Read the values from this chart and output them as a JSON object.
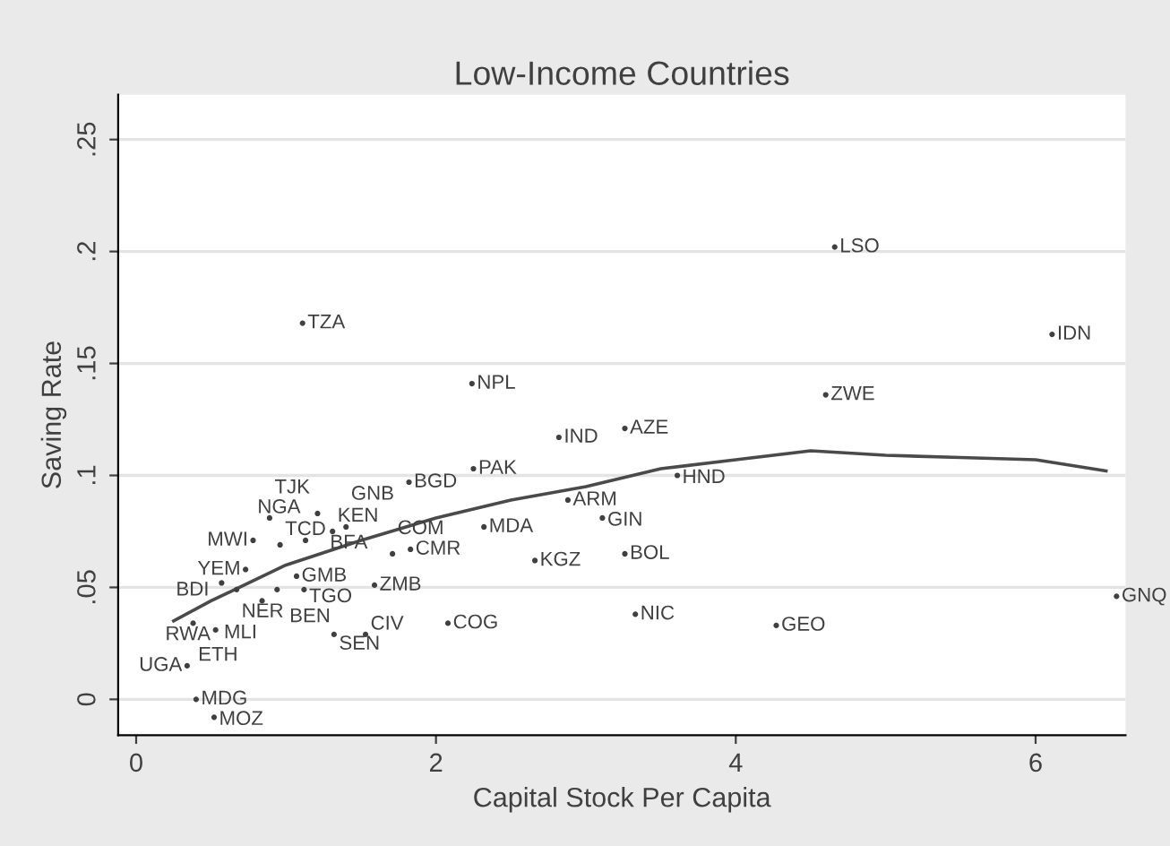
{
  "chart_data": {
    "type": "scatter",
    "title": "Low-Income Countries",
    "xlabel": "Capital Stock Per Capita",
    "ylabel": "Saving Rate",
    "xlim": [
      -0.12,
      6.6
    ],
    "ylim": [
      -0.016,
      0.27
    ],
    "xticks": [
      0,
      2,
      4,
      6
    ],
    "yticks": [
      {
        "value": 0,
        "label": "0"
      },
      {
        "value": 0.05,
        "label": ".05"
      },
      {
        "value": 0.1,
        "label": ".1"
      },
      {
        "value": 0.15,
        "label": ".15"
      },
      {
        "value": 0.2,
        "label": ".2"
      },
      {
        "value": 0.25,
        "label": ".25"
      }
    ],
    "grid": "y",
    "series": [
      {
        "type": "scatter",
        "color": "#404040",
        "marker": "circle",
        "x": [
          4.66,
          1.11,
          6.11,
          2.24,
          4.6,
          2.82,
          3.26,
          2.25,
          1.82,
          3.61,
          2.88,
          3.11,
          0.89,
          1.21,
          1.31,
          1.4,
          2.32,
          0.78,
          0.96,
          1.13,
          1.83,
          1.71,
          2.66,
          3.26,
          0.73,
          1.07,
          0.57,
          0.67,
          0.94,
          1.12,
          0.84,
          1.59,
          6.54,
          0.38,
          0.53,
          0.34,
          0.4,
          0.52,
          1.32,
          1.53,
          2.08,
          3.33,
          4.27
        ],
        "values": [
          0.202,
          0.168,
          0.163,
          0.141,
          0.136,
          0.117,
          0.121,
          0.103,
          0.097,
          0.1,
          0.089,
          0.081,
          0.081,
          0.083,
          0.075,
          0.077,
          0.077,
          0.071,
          0.069,
          0.071,
          0.067,
          0.065,
          0.062,
          0.065,
          0.058,
          0.055,
          0.052,
          0.049,
          0.049,
          0.049,
          0.044,
          0.051,
          0.046,
          0.034,
          0.031,
          0.015,
          0.0,
          -0.008,
          0.029,
          0.029,
          0.034,
          0.038,
          0.033
        ],
        "value_labels": [
          "LSO",
          "TZA",
          "IDN",
          "NPL",
          "ZWE",
          "IND",
          "AZE",
          "PAK",
          "BGD",
          "HND",
          "ARM",
          "GIN",
          "TJK",
          "BFA",
          "KEN",
          "GNB",
          "MDA",
          "MWI",
          "TCD",
          "NGA",
          "CMR",
          "COM",
          "KGZ",
          "BOL",
          "YEM",
          "GMB",
          "BDI",
          "NER",
          "BEN",
          "TGO",
          "MLI",
          "ZMB",
          "GNQ",
          "ETH",
          "RWA",
          "UGA",
          "MDG",
          "MOZ",
          "SEN",
          "CIV",
          "COG",
          "NIC",
          "GEO"
        ]
      },
      {
        "type": "line",
        "color": "#4a4a4a",
        "line_style": "solid",
        "marker": "none",
        "x": [
          0.25,
          0.5,
          1,
          1.5,
          2,
          2.5,
          3,
          3.5,
          4,
          4.5,
          5,
          5.5,
          6,
          6.47
        ],
        "values": [
          0.035,
          0.044,
          0.06,
          0.071,
          0.081,
          0.089,
          0.095,
          0.103,
          0.107,
          0.111,
          0.109,
          0.108,
          0.107,
          0.102
        ]
      }
    ]
  }
}
